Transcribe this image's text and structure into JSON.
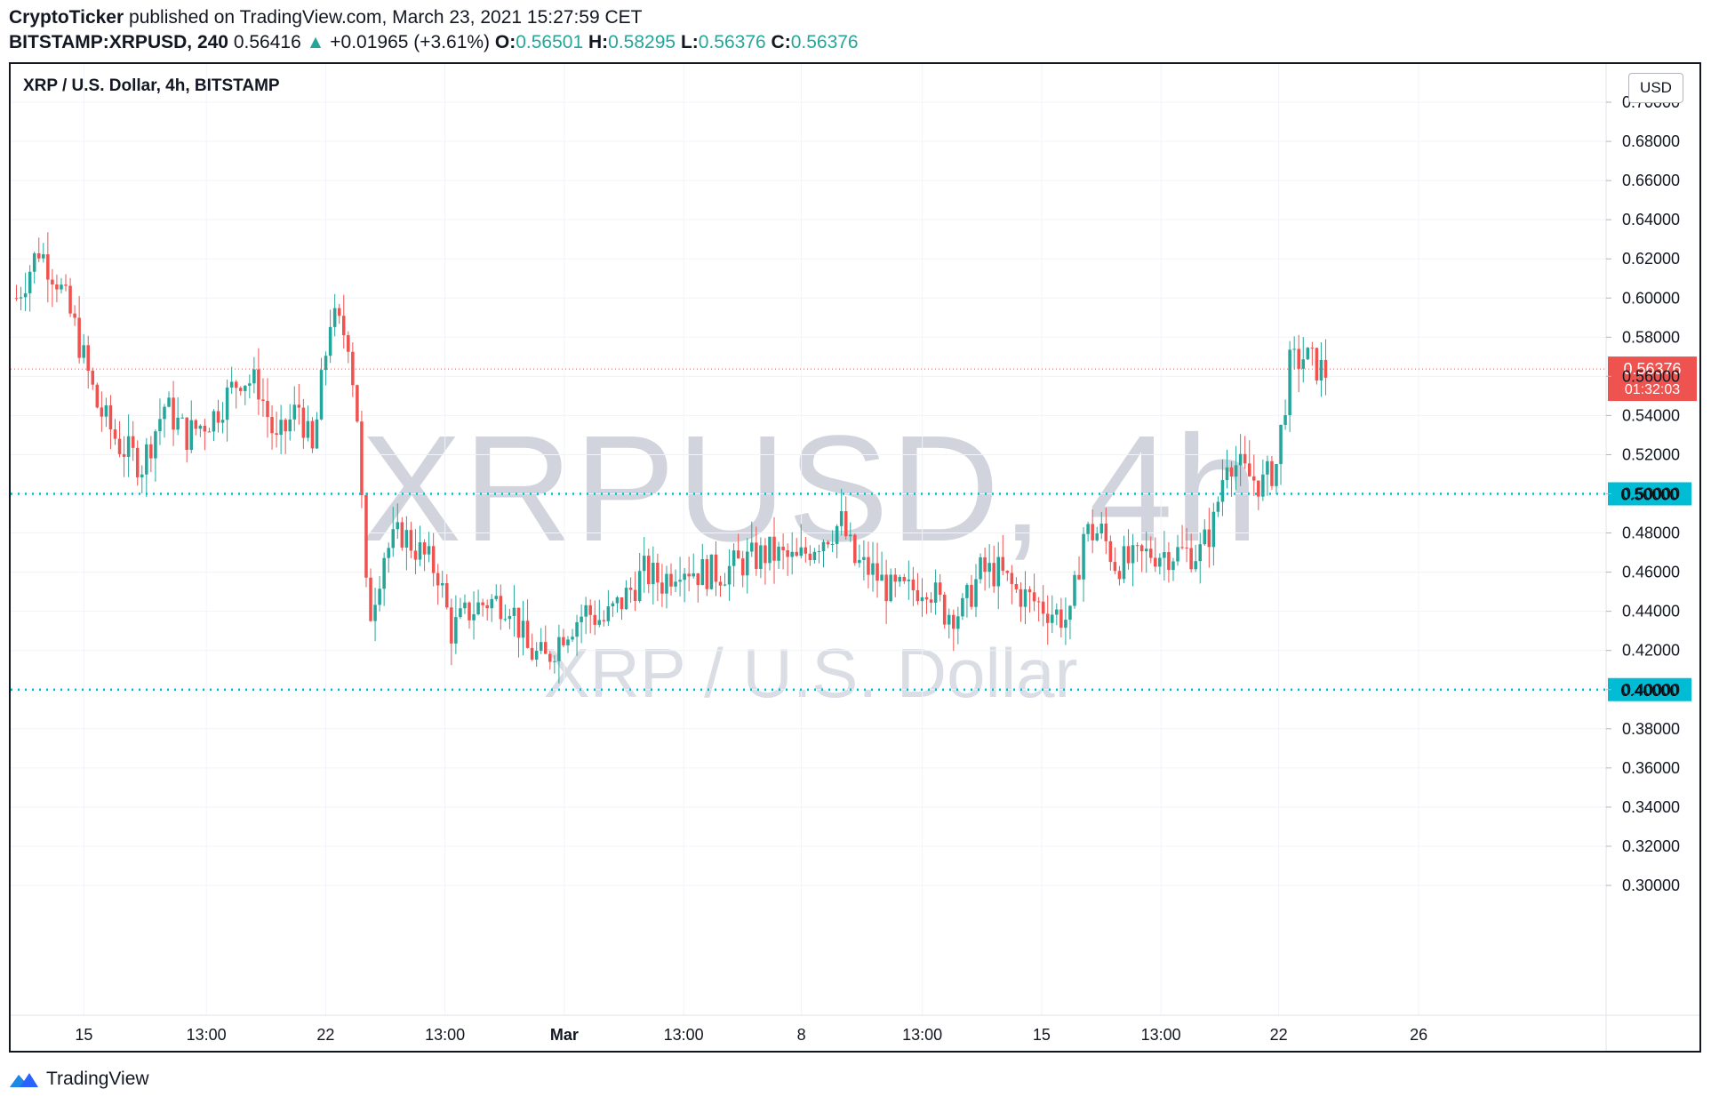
{
  "header": {
    "line1_author": "CryptoTicker",
    "line1_rest": "published on TradingView.com, March 23, 2021 15:27:59 CET",
    "symbol": "BITSTAMP:XRPUSD, 240",
    "last": "0.56416",
    "change": "+0.01965 (+3.61%)",
    "o_label": "O:",
    "o_value": "0.56501",
    "h_label": "H:",
    "h_value": "0.58295",
    "l_label": "L:",
    "l_value": "0.56376",
    "c_label": "C:",
    "c_value": "0.56376"
  },
  "chart_title": "XRP / U.S. Dollar, 4h, BITSTAMP",
  "watermark": {
    "big": "XRPUSD, 4h",
    "small": "XRP / U.S. Dollar"
  },
  "currency_button": "USD",
  "footer": {
    "brand": "TradingView"
  },
  "colors": {
    "up": "#26a69a",
    "down": "#ef5350",
    "level": "#00bcd4",
    "price_tag": "#ef5350"
  },
  "icons": {
    "logo": "tradingview-logo-icon"
  },
  "chart_data": {
    "type": "candlestick",
    "title": "XRP / U.S. Dollar, 4h, BITSTAMP",
    "ylim": [
      0.29,
      0.72
    ],
    "y_ticks": [
      "0.70000",
      "0.68000",
      "0.66000",
      "0.64000",
      "0.62000",
      "0.60000",
      "0.58000",
      "0.56000",
      "0.54000",
      "0.52000",
      "0.50000",
      "0.48000",
      "0.46000",
      "0.44000",
      "0.42000",
      "0.40000",
      "0.38000",
      "0.36000",
      "0.34000",
      "0.32000",
      "0.30000"
    ],
    "x_ticks": [
      "15",
      "13:00",
      "22",
      "13:00",
      "Mar",
      "13:00",
      "8",
      "13:00",
      "15",
      "13:00",
      "22",
      "26"
    ],
    "x_ticks_bold": [
      false,
      false,
      false,
      false,
      true,
      false,
      false,
      false,
      false,
      false,
      false,
      false
    ],
    "grid": true,
    "horizontal_levels": [
      {
        "value": 0.5,
        "label": "0.50000"
      },
      {
        "value": 0.4,
        "label": "0.40000"
      }
    ],
    "last_price": {
      "value": 0.56376,
      "label": "0.56376",
      "countdown": "01:32:03"
    },
    "waypoints": [
      [
        0,
        0.6
      ],
      [
        5,
        0.625
      ],
      [
        9,
        0.61
      ],
      [
        13,
        0.585
      ],
      [
        18,
        0.545
      ],
      [
        23,
        0.525
      ],
      [
        28,
        0.515
      ],
      [
        33,
        0.545
      ],
      [
        38,
        0.53
      ],
      [
        44,
        0.54
      ],
      [
        50,
        0.56
      ],
      [
        54,
        0.555
      ],
      [
        58,
        0.525
      ],
      [
        63,
        0.545
      ],
      [
        66,
        0.52
      ],
      [
        70,
        0.59
      ],
      [
        74,
        0.58
      ],
      [
        76,
        0.54
      ],
      [
        78,
        0.45
      ],
      [
        79,
        0.44
      ],
      [
        82,
        0.47
      ],
      [
        86,
        0.48
      ],
      [
        90,
        0.47
      ],
      [
        94,
        0.46
      ],
      [
        97,
        0.43
      ],
      [
        101,
        0.44
      ],
      [
        105,
        0.445
      ],
      [
        110,
        0.445
      ],
      [
        114,
        0.42
      ],
      [
        118,
        0.415
      ],
      [
        122,
        0.43
      ],
      [
        127,
        0.44
      ],
      [
        131,
        0.435
      ],
      [
        135,
        0.445
      ],
      [
        140,
        0.46
      ],
      [
        144,
        0.455
      ],
      [
        148,
        0.465
      ],
      [
        152,
        0.46
      ],
      [
        157,
        0.46
      ],
      [
        162,
        0.465
      ],
      [
        168,
        0.47
      ],
      [
        174,
        0.465
      ],
      [
        178,
        0.475
      ],
      [
        184,
        0.485
      ],
      [
        187,
        0.465
      ],
      [
        191,
        0.46
      ],
      [
        195,
        0.45
      ],
      [
        199,
        0.45
      ],
      [
        203,
        0.455
      ],
      [
        207,
        0.44
      ],
      [
        211,
        0.44
      ],
      [
        215,
        0.46
      ],
      [
        219,
        0.46
      ],
      [
        223,
        0.45
      ],
      [
        227,
        0.445
      ],
      [
        231,
        0.44
      ],
      [
        235,
        0.435
      ],
      [
        238,
        0.48
      ],
      [
        242,
        0.48
      ],
      [
        245,
        0.465
      ],
      [
        249,
        0.465
      ],
      [
        253,
        0.47
      ],
      [
        257,
        0.47
      ],
      [
        261,
        0.47
      ],
      [
        264,
        0.47
      ],
      [
        267,
        0.485
      ],
      [
        270,
        0.52
      ],
      [
        274,
        0.51
      ],
      [
        278,
        0.505
      ],
      [
        281,
        0.515
      ],
      [
        284,
        0.565
      ],
      [
        287,
        0.57
      ],
      [
        290,
        0.565
      ],
      [
        292,
        0.562
      ]
    ]
  }
}
